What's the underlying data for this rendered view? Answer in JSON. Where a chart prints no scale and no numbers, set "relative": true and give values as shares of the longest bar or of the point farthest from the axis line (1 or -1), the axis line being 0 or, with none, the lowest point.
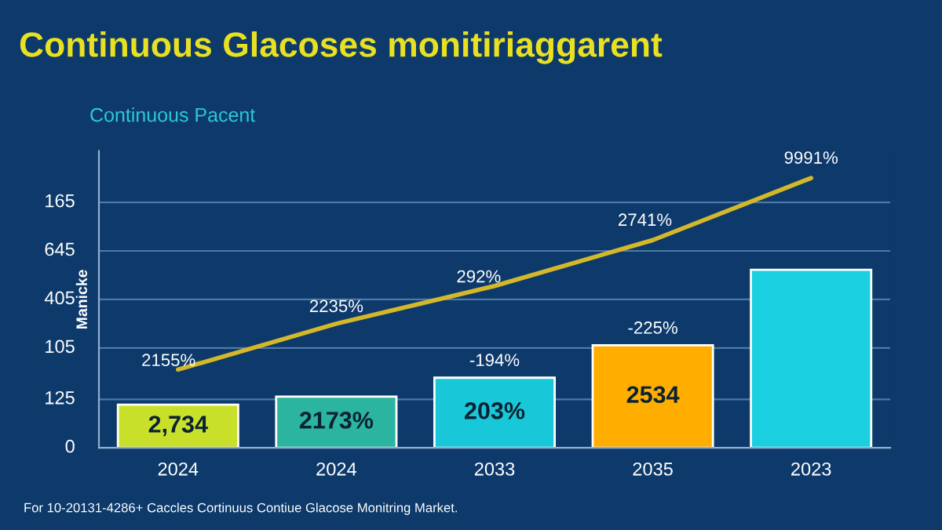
{
  "chart_data": {
    "type": "bar",
    "relative": true,
    "title": "Continuous Glacoses monitiriaggarent",
    "subtitle": "Continuous Pacent",
    "ylabel": "Manicke",
    "categories": [
      "2024",
      "2024",
      "2033",
      "2035",
      "2023"
    ],
    "series": [
      {
        "values": [
          0.16,
          0.19,
          0.26,
          0.38,
          0.66
        ],
        "colors": [
          "#c8e02a",
          "#2bb5a0",
          "#19c8d8",
          "#ffae00",
          "#1ad0e0"
        ]
      },
      {
        "type": "line",
        "color": "#d4b82a",
        "values": [
          0.29,
          0.46,
          0.6,
          0.77,
          1.0
        ]
      }
    ],
    "ref_lines": [
      {
        "axis": "y",
        "value": 0.18,
        "color": "#4c7aa8"
      },
      {
        "axis": "y",
        "value": 0.37,
        "color": "#4c7aa8"
      },
      {
        "axis": "y",
        "value": 0.55,
        "color": "#4c7aa8"
      },
      {
        "axis": "y",
        "value": 0.73,
        "color": "#4c7aa8"
      },
      {
        "axis": "y",
        "value": 0.91,
        "color": "#4c7aa8"
      }
    ],
    "legend": false,
    "annotations": [
      "0",
      "125",
      "105",
      "405",
      "645",
      "165",
      "2,734",
      "2173%",
      "203%",
      "2534",
      "-194%",
      "-225%",
      "2155%",
      "2235%",
      "292%",
      "2741%",
      "9991%",
      "For 10-20131-4286+ Caccles Cortinuus Contiue Glacose Monitring Market."
    ]
  }
}
